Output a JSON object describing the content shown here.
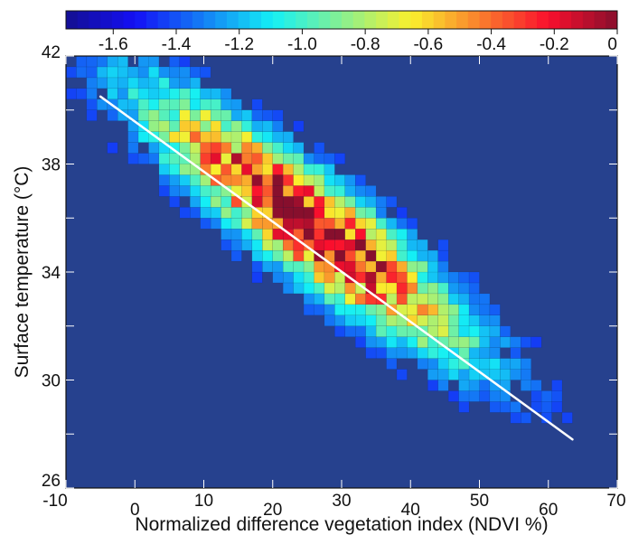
{
  "chart_data": {
    "type": "heatmap",
    "title": "",
    "xlabel": "Normalized difference vegetation index (NDVI %)",
    "ylabel": "Surface temperature (°C)",
    "xlim": [
      -10,
      70
    ],
    "ylim": [
      26,
      42
    ],
    "x_ticks": [
      -10,
      0,
      10,
      20,
      30,
      40,
      50,
      60,
      70
    ],
    "x_tick_labels": [
      "-10",
      "0",
      "10",
      "20",
      "30",
      "40",
      "50",
      "60",
      "70"
    ],
    "y_ticks": [
      26,
      30,
      34,
      38,
      42
    ],
    "y_tick_labels": [
      "26",
      "30",
      "34",
      "38",
      "42"
    ],
    "colorbar": {
      "placement": "top",
      "range": [
        -1.75,
        0
      ],
      "ticks": [
        -1.6,
        -1.4,
        -1.2,
        -1.0,
        -0.8,
        -0.6,
        -0.4,
        -0.2,
        0
      ],
      "tick_labels": [
        "-1.6",
        "-1.4",
        "-1.2",
        "-1.0",
        "-0.8",
        "-0.6",
        "-0.4",
        "-0.2",
        "0"
      ],
      "colormap": "jet"
    },
    "background_value": -1.75,
    "bin_size": {
      "x": 1.5,
      "y": 0.4
    },
    "density_model": {
      "peak": {
        "x": 25,
        "y": 35.8
      },
      "trend_slope": -0.185,
      "spread_along": 16,
      "spread_across": 1.4
    },
    "fit_line": {
      "color": "#ffffff",
      "points": [
        {
          "x": -5,
          "y": 40.5
        },
        {
          "x": 63.5,
          "y": 27.8
        }
      ]
    },
    "grid": false,
    "legend": "none",
    "colors": {
      "background": "#26418e",
      "fit_line": "#ffffff",
      "frame": "#111111"
    }
  }
}
